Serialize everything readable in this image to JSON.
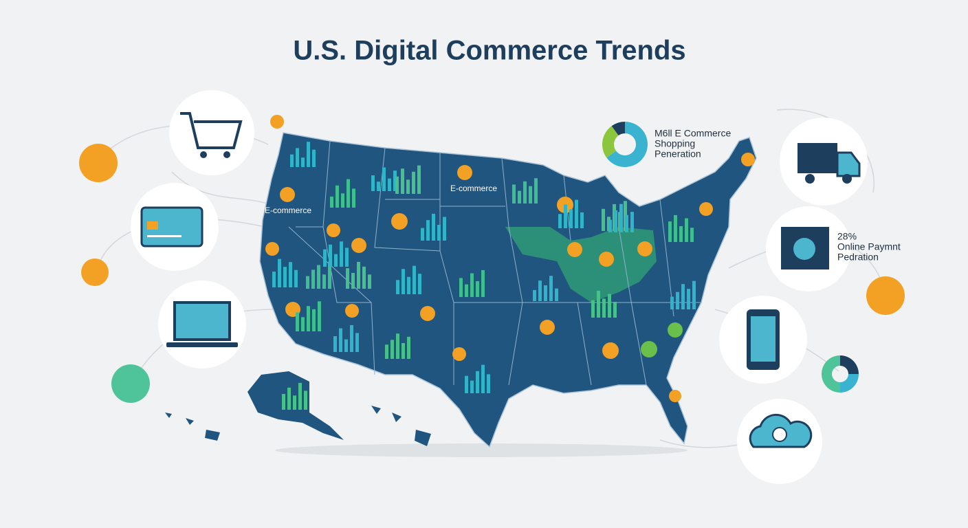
{
  "title": "U.S. Digital Commerce Trends",
  "map_labels": [
    "E-commerce",
    "E-commerce"
  ],
  "callouts": [
    {
      "lines": [
        "M6ll E Commerce",
        "Shopping",
        "Peneration"
      ],
      "donut": [
        65,
        25,
        10
      ]
    },
    {
      "lines": [
        "28%",
        "Online Paymnt",
        "Pedration"
      ]
    }
  ],
  "side_donut": [
    25,
    25,
    50
  ],
  "bar_groups": [
    [
      40,
      60,
      30,
      80,
      55
    ],
    [
      35,
      70,
      45,
      90,
      60
    ],
    [
      50,
      30,
      75,
      40,
      65
    ],
    [
      55,
      80,
      45,
      70,
      90
    ],
    [
      40,
      65,
      85,
      50,
      75
    ],
    [
      60,
      40,
      70,
      55,
      80
    ],
    [
      45,
      75,
      60,
      90,
      50
    ],
    [
      70,
      45,
      85,
      60,
      95
    ],
    [
      50,
      90,
      65,
      80,
      55
    ],
    [
      40,
      60,
      75,
      45,
      85
    ],
    [
      55,
      70,
      40,
      80,
      60
    ],
    [
      65,
      50,
      85,
      70,
      45
    ],
    [
      45,
      80,
      55,
      90,
      65
    ],
    [
      60,
      40,
      75,
      50,
      85
    ],
    [
      35,
      65,
      50,
      80,
      40
    ],
    [
      55,
      85,
      60,
      75,
      50
    ],
    [
      40,
      70,
      90,
      55,
      65
    ],
    [
      60,
      45,
      80,
      70,
      95
    ],
    [
      50,
      75,
      40,
      85,
      60
    ],
    [
      45,
      60,
      80,
      50,
      70
    ],
    [
      55,
      40,
      70,
      90,
      60
    ],
    [
      65,
      85,
      50,
      75,
      45
    ],
    [
      40,
      55,
      80,
      65,
      90
    ],
    [
      50,
      70,
      45,
      85,
      60
    ]
  ]
}
